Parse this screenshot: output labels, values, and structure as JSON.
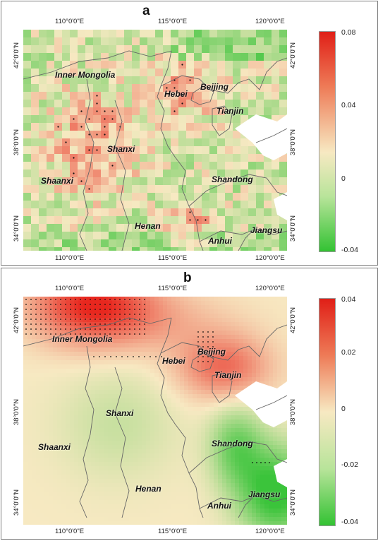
{
  "panels": [
    {
      "label": "a",
      "lon_ticks": [
        "110°0'0\"E",
        "115°0'0\"E",
        "120°0'0\"E"
      ],
      "lat_ticks_left": [
        "42°0'0\"N",
        "38°0'0\"N",
        "34°0'0\"N"
      ],
      "lat_ticks_right": [
        "42°0'0\"N",
        "38°0'0\"N",
        "34°0'0\"N"
      ],
      "colorbar": {
        "max": "0.08",
        "upper": "0.04",
        "mid": "0",
        "min": "-0.04"
      },
      "provinces": {
        "inner_mongolia": "Inner Mongolia",
        "hebei": "Hebei",
        "beijing": "Beijing",
        "tianjin": "Tianjin",
        "shanxi": "Shanxi",
        "shaanxi": "Shaanxi",
        "shandong": "Shandong",
        "henan": "Henan",
        "jiangsu": "Jiangsu",
        "anhui": "Anhui"
      },
      "colors": {
        "high": "#e8271e",
        "mid": "#f7e9c2",
        "low": "#3bc43b"
      }
    },
    {
      "label": "b",
      "lon_ticks": [
        "110°0'0\"E",
        "115°0'0\"E",
        "120°0'0\"E"
      ],
      "lat_ticks_left": [
        "42°0'0\"N",
        "38°0'0\"N",
        "34°0'0\"N"
      ],
      "lat_ticks_right": [
        "42°0'0\"N",
        "38°0'0\"N",
        "34°0'0\"N"
      ],
      "colorbar": {
        "max": "0.04",
        "upper": "0.02",
        "mid": "0",
        "lower": "-0.02",
        "min": "-0.04"
      },
      "provinces": {
        "inner_mongolia": "Inner Mongolia",
        "hebei": "Hebei",
        "beijing": "Beijing",
        "tianjin": "Tianjin",
        "shanxi": "Shanxi",
        "shaanxi": "Shaanxi",
        "shandong": "Shandong",
        "henan": "Henan",
        "jiangsu": "Jiangsu",
        "anhui": "Anhui"
      },
      "colors": {
        "high": "#e8271e",
        "mid": "#f7e9c2",
        "low": "#3bc43b"
      }
    }
  ]
}
